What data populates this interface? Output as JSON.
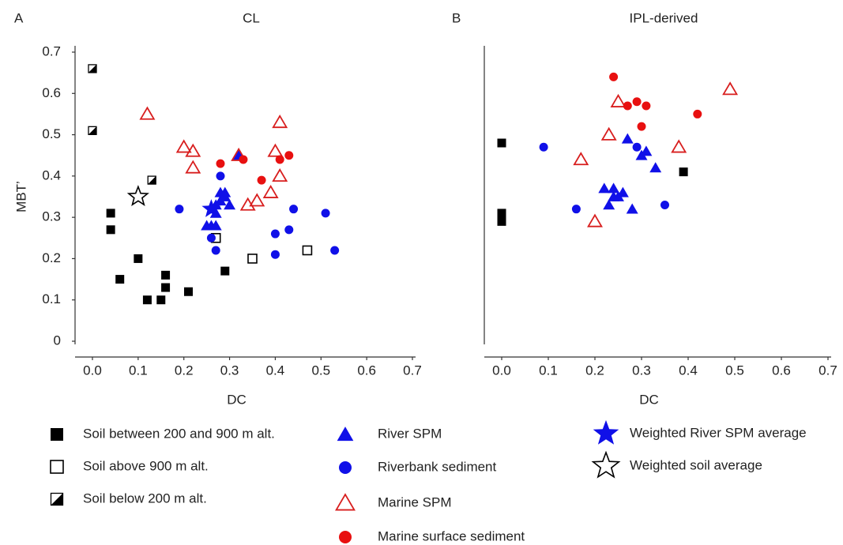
{
  "chart_data": [
    {
      "type": "scatter",
      "panel": "A",
      "title": "CL",
      "x_label": "DC",
      "y_label": "MBT’",
      "xlim": [
        0,
        0.7
      ],
      "ylim": [
        0,
        0.7
      ],
      "xticks": [
        {
          "value": 0,
          "label": "0.0"
        },
        0.1,
        0.2,
        0.3,
        0.4,
        0.5,
        0.6,
        0.7
      ],
      "yticks": [
        0,
        0.1,
        0.2,
        0.3,
        0.4,
        0.5,
        0.6,
        0.7
      ],
      "series": [
        {
          "marker": "square",
          "color": "#000000",
          "x": [
            0.04,
            0.04,
            0.1,
            0.06,
            0.16,
            0.16,
            0.12,
            0.15,
            0.21,
            0.29
          ],
          "y": [
            0.31,
            0.27,
            0.2,
            0.15,
            0.16,
            0.13,
            0.1,
            0.1,
            0.12,
            0.17
          ]
        },
        {
          "marker": "open-square",
          "color": "#000000",
          "x": [
            0.27,
            0.35,
            0.47
          ],
          "y": [
            0.25,
            0.2,
            0.22
          ]
        },
        {
          "marker": "half-square",
          "color": "#000000",
          "x": [
            0.0,
            0.0,
            0.13
          ],
          "y": [
            0.66,
            0.51,
            0.39
          ]
        },
        {
          "marker": "triangle",
          "color": "#1010e8",
          "x": [
            0.25,
            0.26,
            0.27,
            0.27,
            0.28,
            0.29,
            0.28,
            0.3,
            0.29,
            0.32,
            0.27
          ],
          "y": [
            0.28,
            0.28,
            0.28,
            0.31,
            0.36,
            0.36,
            0.34,
            0.33,
            0.35,
            0.45,
            0.33
          ]
        },
        {
          "marker": "circle",
          "color": "#1010e8",
          "x": [
            0.19,
            0.28,
            0.26,
            0.27,
            0.4,
            0.43,
            0.44,
            0.51,
            0.4,
            0.53
          ],
          "y": [
            0.32,
            0.4,
            0.25,
            0.22,
            0.26,
            0.27,
            0.32,
            0.31,
            0.21,
            0.22
          ]
        },
        {
          "marker": "open-triangle",
          "color": "#d81e1e",
          "x": [
            0.12,
            0.2,
            0.22,
            0.22,
            0.32,
            0.34,
            0.36,
            0.39,
            0.4,
            0.41,
            0.41
          ],
          "y": [
            0.55,
            0.47,
            0.46,
            0.42,
            0.45,
            0.33,
            0.34,
            0.36,
            0.46,
            0.53,
            0.4
          ]
        },
        {
          "marker": "circle",
          "color": "#e81010",
          "x": [
            0.28,
            0.33,
            0.37,
            0.41,
            0.43
          ],
          "y": [
            0.43,
            0.44,
            0.39,
            0.44,
            0.45
          ]
        },
        {
          "marker": "star",
          "color": "#1010e8",
          "x": [
            0.26
          ],
          "y": [
            0.32
          ]
        },
        {
          "marker": "open-star",
          "color": "#000000",
          "x": [
            0.1
          ],
          "y": [
            0.35
          ]
        }
      ]
    },
    {
      "type": "scatter",
      "panel": "B",
      "title": "IPL-derived",
      "x_label": "DC",
      "xlim": [
        0,
        0.7
      ],
      "ylim": [
        0,
        0.7
      ],
      "xticks": [
        {
          "value": 0,
          "label": "0.0"
        },
        0.1,
        0.2,
        0.3,
        0.4,
        0.5,
        0.6,
        0.7
      ],
      "series": [
        {
          "marker": "square",
          "color": "#000000",
          "x": [
            0.0,
            0.0,
            0.0,
            0.39
          ],
          "y": [
            0.48,
            0.31,
            0.29,
            0.41
          ]
        },
        {
          "marker": "triangle",
          "color": "#1010e8",
          "x": [
            0.27,
            0.3,
            0.31,
            0.33,
            0.22,
            0.24,
            0.24,
            0.26,
            0.25,
            0.23,
            0.28
          ],
          "y": [
            0.49,
            0.45,
            0.46,
            0.42,
            0.37,
            0.37,
            0.35,
            0.36,
            0.35,
            0.33,
            0.32
          ]
        },
        {
          "marker": "circle",
          "color": "#1010e8",
          "x": [
            0.09,
            0.16,
            0.29,
            0.35
          ],
          "y": [
            0.47,
            0.32,
            0.47,
            0.33
          ]
        },
        {
          "marker": "open-triangle",
          "color": "#d81e1e",
          "x": [
            0.25,
            0.23,
            0.17,
            0.2,
            0.38,
            0.49
          ],
          "y": [
            0.58,
            0.5,
            0.44,
            0.29,
            0.47,
            0.61
          ]
        },
        {
          "marker": "circle",
          "color": "#e81010",
          "x": [
            0.24,
            0.27,
            0.29,
            0.31,
            0.3,
            0.42
          ],
          "y": [
            0.64,
            0.57,
            0.58,
            0.57,
            0.52,
            0.55
          ]
        }
      ]
    }
  ],
  "legend": [
    {
      "label": "Soil between 200 and 900 m alt.",
      "marker": "square",
      "color": "#000000"
    },
    {
      "label": "Soil above 900 m alt.",
      "marker": "open-square",
      "color": "#000000"
    },
    {
      "label": "Soil below 200 m alt.",
      "marker": "half-square",
      "color": "#000000"
    },
    {
      "label": "River SPM",
      "marker": "triangle",
      "color": "#1010e8"
    },
    {
      "label": "Riverbank sediment",
      "marker": "circle",
      "color": "#1010e8"
    },
    {
      "label": "Marine SPM",
      "marker": "open-triangle",
      "color": "#d81e1e"
    },
    {
      "label": "Marine surface sediment",
      "marker": "circle",
      "color": "#e81010"
    },
    {
      "label": "Weighted River SPM average",
      "marker": "star",
      "color": "#1010e8"
    },
    {
      "label": "Weighted soil average",
      "marker": "open-star",
      "color": "#000000"
    }
  ]
}
